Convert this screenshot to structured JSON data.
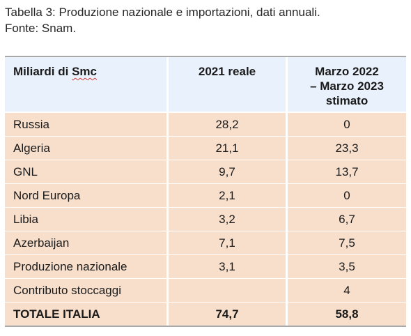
{
  "caption": {
    "line1": "Tabella 3: Produzione nazionale e importazioni, dati annuali.",
    "line2": "Fonte: Snam."
  },
  "table": {
    "headers": {
      "col1_part1": "Miliardi di ",
      "col1_part2": "Smc",
      "col2": "2021 reale",
      "col3": "Marzo 2022\n– Marzo 2023\nstimato"
    },
    "rows": [
      {
        "label": "Russia",
        "v2021": "28,2",
        "vest": "0"
      },
      {
        "label": "Algeria",
        "v2021": "21,1",
        "vest": "23,3"
      },
      {
        "label": "GNL",
        "v2021": "9,7",
        "vest": "13,7"
      },
      {
        "label": "Nord Europa",
        "v2021": "2,1",
        "vest": "0"
      },
      {
        "label": "Libia",
        "v2021": "3,2",
        "vest": "6,7"
      },
      {
        "label": "Azerbaijan",
        "v2021": "7,1",
        "vest": "7,5"
      },
      {
        "label": "Produzione nazionale",
        "v2021": "3,1",
        "vest": "3,5"
      },
      {
        "label": "Contributo stoccaggi",
        "v2021": "",
        "vest": "4"
      }
    ],
    "total": {
      "label": "TOTALE ITALIA",
      "v2021": "74,7",
      "vest": "58,8"
    }
  }
}
